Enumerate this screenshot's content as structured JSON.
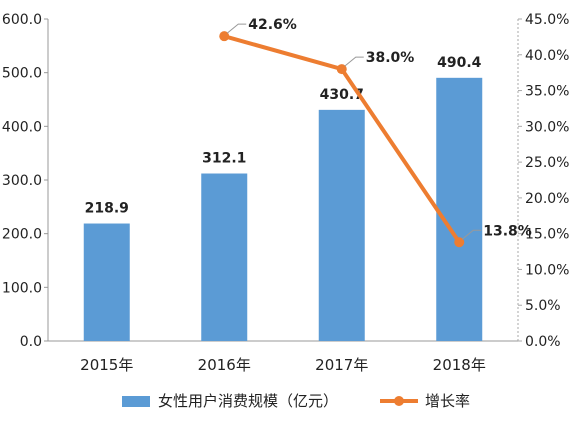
{
  "chart_data": {
    "type": "bar",
    "categories": [
      "2015年",
      "2016年",
      "2017年",
      "2018年"
    ],
    "series": [
      {
        "name": "女性用户消费规模（亿元）",
        "type": "bar",
        "axis": "left",
        "values": [
          218.9,
          312.1,
          430.7,
          490.4
        ],
        "labels": [
          "218.9",
          "312.1",
          "430.7",
          "490.4"
        ]
      },
      {
        "name": "增长率",
        "type": "line",
        "axis": "right",
        "x": [
          "2016年",
          "2017年",
          "2018年"
        ],
        "values": [
          42.6,
          38.0,
          13.8
        ],
        "labels": [
          "42.6%",
          "38.0%",
          "13.8%"
        ]
      }
    ],
    "y_left": {
      "min": 0,
      "max": 600,
      "step": 100,
      "ticks": [
        "0.0",
        "100.0",
        "200.0",
        "300.0",
        "400.0",
        "500.0",
        "600.0"
      ]
    },
    "y_right": {
      "min": 0,
      "max": 45,
      "step": 5,
      "ticks": [
        "0.0%",
        "5.0%",
        "10.0%",
        "15.0%",
        "20.0%",
        "25.0%",
        "30.0%",
        "35.0%",
        "40.0%",
        "45.0%"
      ]
    },
    "legend_position": "bottom",
    "grid": false,
    "colors": {
      "bar": "#5b9bd5",
      "line": "#ed7d31"
    }
  }
}
